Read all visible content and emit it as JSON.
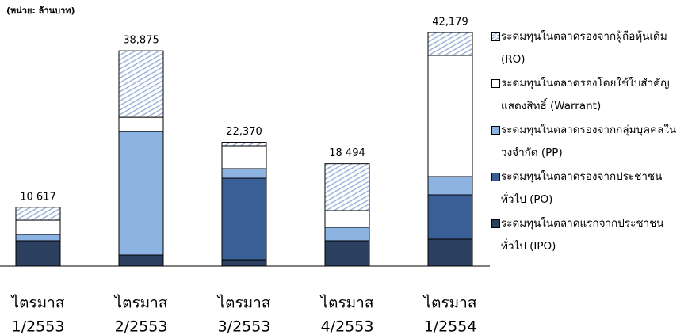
{
  "chart_data": {
    "type": "stacked-bar",
    "unit_label": "(หน่วย: ล้านบาท)",
    "categories": [
      [
        "ไตรมาส",
        "1/2553"
      ],
      [
        "ไตรมาส",
        "2/2553"
      ],
      [
        "ไตรมาส",
        "3/2553"
      ],
      [
        "ไตรมาส",
        "4/2553"
      ],
      [
        "ไตรมาส",
        "1/2554"
      ]
    ],
    "series": [
      {
        "name": "ระดมทุนในตลาดแรกจากประชาชนทั่วไป (IPO)",
        "color": "#2b3f5f",
        "values": [
          4580,
          2000,
          1140,
          4580,
          4860
        ]
      },
      {
        "name": "ระดมทุนในตลาดรองจากประชาชนทั่วไป (PO)",
        "color": "#3a5f96",
        "values": [
          0,
          0,
          14730,
          0,
          8010
        ]
      },
      {
        "name": "ระดมทุนในตลาดรองจากกลุ่มบุคคลในวงจำกัด (PP)",
        "color": "#8db3e2",
        "values": [
          1140,
          22300,
          1720,
          2430,
          3290
        ]
      },
      {
        "name": "ระดมทุนในตลาดรองโดยใช้ใบสำคัญแสดงสิทธิ์ (Warrant)",
        "color": "#ffffff",
        "values": [
          2570,
          2570,
          4150,
          3000,
          21880
        ]
      },
      {
        "name": "ระดมทุนในตลาดรองจากผู้ถือหุ้นเดิม (RO)",
        "color": "#8fa9d6",
        "hatched": true,
        "values": [
          2327,
          12005,
          630,
          8484,
          4139
        ]
      }
    ],
    "totals": [
      10617,
      38875,
      22370,
      18494,
      42179
    ],
    "total_labels": [
      "10 617",
      "38,875",
      "22,370",
      "18 494",
      "42,179"
    ],
    "ylim": [
      0,
      44000
    ]
  }
}
